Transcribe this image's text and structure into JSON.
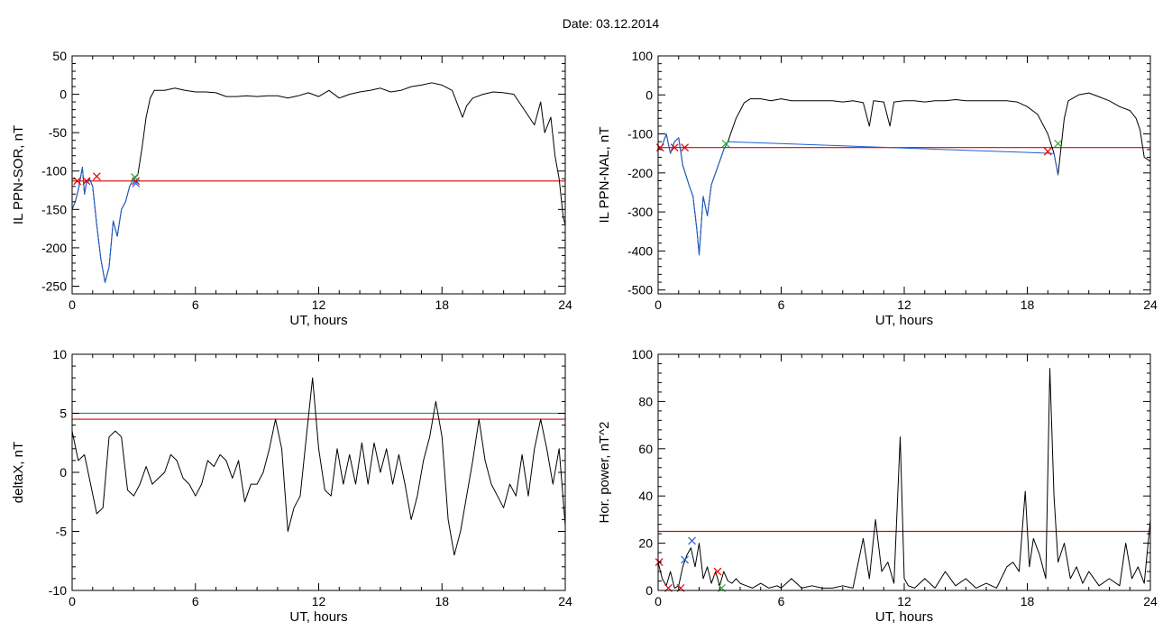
{
  "page": {
    "title": "Date:  03.12.2014"
  },
  "chart_data": [
    {
      "id": "p1",
      "type": "line",
      "ylabel": "IL PPN-SOR, nT",
      "xlabel": "UT, hours",
      "xlim": [
        0,
        24
      ],
      "ylim": [
        -260,
        50
      ],
      "xticks": [
        0,
        6,
        12,
        18,
        24
      ],
      "yticks": [
        50,
        0,
        -50,
        -100,
        -150,
        -200,
        -250
      ],
      "thresholds": [
        {
          "value": -113,
          "color": "#e00000"
        }
      ],
      "series": [
        {
          "color": "#000000",
          "x": [
            0,
            0.15,
            0.3,
            0.5,
            0.6,
            0.7,
            0.85,
            1.0,
            1.2,
            1.4,
            1.6,
            1.8,
            2.0,
            2.2,
            2.4,
            2.6,
            2.8,
            3.0,
            3.2,
            3.4,
            3.6,
            3.8,
            4.0,
            4.2,
            4.5,
            5,
            5.5,
            6,
            6.5,
            7,
            7.5,
            8,
            8.5,
            9,
            9.5,
            10,
            10.5,
            11,
            11.5,
            12,
            12.5,
            13,
            13.5,
            14,
            14.5,
            15,
            15.5,
            16,
            16.5,
            17,
            17.5,
            18,
            18.5,
            19,
            19.2,
            19.5,
            20,
            20.5,
            21,
            21.5,
            22,
            22.5,
            22.8,
            23,
            23.3,
            23.5,
            23.7,
            23.9,
            24
          ],
          "y": [
            -150,
            -140,
            -125,
            -95,
            -130,
            -115,
            -110,
            -120,
            -170,
            -215,
            -245,
            -225,
            -165,
            -185,
            -150,
            -140,
            -120,
            -110,
            -105,
            -70,
            -30,
            -5,
            5,
            5,
            5,
            8,
            5,
            3,
            3,
            2,
            -3,
            -3,
            -2,
            -3,
            -2,
            -2,
            -5,
            -2,
            2,
            -3,
            5,
            -5,
            0,
            3,
            5,
            8,
            3,
            5,
            10,
            12,
            15,
            12,
            5,
            -30,
            -15,
            -5,
            0,
            3,
            2,
            0,
            -20,
            -40,
            -10,
            -50,
            -30,
            -80,
            -110,
            -160,
            -170
          ]
        },
        {
          "color": "#1f5fd0",
          "x": [
            0,
            0.15,
            0.3,
            0.5,
            0.6,
            0.7,
            0.85,
            1.0,
            1.2,
            1.4,
            1.6,
            1.8,
            2.0,
            2.2,
            2.4,
            2.6,
            2.8,
            3.0,
            3.2
          ],
          "y": [
            -150,
            -140,
            -125,
            -95,
            -130,
            -115,
            -110,
            -120,
            -170,
            -215,
            -245,
            -225,
            -165,
            -185,
            -150,
            -140,
            -120,
            -110,
            -105
          ]
        }
      ],
      "markers": [
        {
          "x": 0.25,
          "y": -113,
          "color": "#e00000"
        },
        {
          "x": 0.7,
          "y": -113,
          "color": "#e00000"
        },
        {
          "x": 1.2,
          "y": -107,
          "color": "#e00000"
        },
        {
          "x": 3.1,
          "y": -113,
          "color": "#e00000"
        },
        {
          "x": 3.05,
          "y": -108,
          "color": "#22aa22"
        },
        {
          "x": 3.1,
          "y": -116,
          "color": "#1f5fd0"
        }
      ]
    },
    {
      "id": "p2",
      "type": "line",
      "ylabel": "IL PPN-NAL, nT",
      "xlabel": "UT, hours",
      "xlim": [
        0,
        24
      ],
      "ylim": [
        -510,
        100
      ],
      "xticks": [
        0,
        6,
        12,
        18,
        24
      ],
      "yticks": [
        100,
        0,
        -100,
        -200,
        -300,
        -400,
        -500
      ],
      "thresholds": [
        {
          "value": -135,
          "color": "#e00000"
        }
      ],
      "series": [
        {
          "color": "#000000",
          "x": [
            0,
            0.2,
            0.4,
            0.6,
            0.8,
            1.0,
            1.2,
            1.5,
            1.7,
            1.9,
            2.0,
            2.2,
            2.4,
            2.6,
            2.8,
            3.0,
            3.2,
            3.4,
            3.6,
            3.8,
            4.0,
            4.2,
            4.5,
            5,
            5.5,
            6,
            6.5,
            7,
            7.5,
            8,
            8.5,
            9,
            9.5,
            10,
            10.3,
            10.5,
            11,
            11.3,
            11.5,
            12,
            12.5,
            13,
            13.5,
            14,
            14.5,
            15,
            15.5,
            16,
            16.5,
            17,
            17.5,
            18,
            18.5,
            19,
            19.3,
            19.5,
            19.8,
            20,
            20.5,
            21,
            21.5,
            22,
            22.5,
            23,
            23.3,
            23.5,
            23.7,
            24
          ],
          "y": [
            -140,
            -130,
            -100,
            -150,
            -120,
            -110,
            -180,
            -230,
            -260,
            -350,
            -410,
            -260,
            -310,
            -230,
            -200,
            -170,
            -140,
            -120,
            -90,
            -60,
            -40,
            -20,
            -10,
            -10,
            -15,
            -10,
            -15,
            -15,
            -15,
            -15,
            -15,
            -18,
            -15,
            -20,
            -80,
            -15,
            -18,
            -80,
            -18,
            -15,
            -15,
            -18,
            -15,
            -15,
            -12,
            -15,
            -15,
            -15,
            -15,
            -15,
            -18,
            -30,
            -50,
            -100,
            -150,
            -205,
            -60,
            -15,
            0,
            5,
            -5,
            -15,
            -30,
            -40,
            -60,
            -90,
            -160,
            -170
          ]
        },
        {
          "color": "#1f5fd0",
          "x": [
            0,
            0.2,
            0.4,
            0.6,
            0.8,
            1.0,
            1.2,
            1.5,
            1.7,
            1.9,
            2.0,
            2.2,
            2.4,
            2.6,
            2.8,
            3.0,
            3.2,
            3.4,
            19.3,
            19.5
          ],
          "y": [
            -140,
            -130,
            -100,
            -150,
            -120,
            -110,
            -180,
            -230,
            -260,
            -350,
            -410,
            -260,
            -310,
            -230,
            -200,
            -170,
            -140,
            -120,
            -150,
            -205
          ]
        }
      ],
      "markers": [
        {
          "x": 0.1,
          "y": -135,
          "color": "#e00000"
        },
        {
          "x": 0.8,
          "y": -135,
          "color": "#e00000"
        },
        {
          "x": 1.3,
          "y": -135,
          "color": "#e00000"
        },
        {
          "x": 3.3,
          "y": -125,
          "color": "#22aa22"
        },
        {
          "x": 19.0,
          "y": -145,
          "color": "#e00000"
        },
        {
          "x": 19.5,
          "y": -125,
          "color": "#22aa22"
        }
      ]
    },
    {
      "id": "p3",
      "type": "line",
      "ylabel": "deltaX, nT",
      "xlabel": "UT, hours",
      "xlim": [
        0,
        24
      ],
      "ylim": [
        -10,
        10
      ],
      "xticks": [
        0,
        6,
        12,
        18,
        24
      ],
      "yticks": [
        10,
        5,
        0,
        -5,
        -10
      ],
      "thresholds": [
        {
          "value": 5.0,
          "color": "#2c8c8c"
        },
        {
          "value": 4.5,
          "color": "#e00000"
        }
      ],
      "series": [
        {
          "color": "#000000",
          "x": [
            0,
            0.3,
            0.6,
            0.9,
            1.2,
            1.5,
            1.8,
            2.1,
            2.4,
            2.7,
            3.0,
            3.3,
            3.6,
            3.9,
            4.2,
            4.5,
            4.8,
            5.1,
            5.4,
            5.7,
            6.0,
            6.3,
            6.6,
            6.9,
            7.2,
            7.5,
            7.8,
            8.1,
            8.4,
            8.7,
            9.0,
            9.3,
            9.6,
            9.9,
            10.2,
            10.5,
            10.8,
            11.1,
            11.4,
            11.7,
            12.0,
            12.3,
            12.6,
            12.9,
            13.2,
            13.5,
            13.8,
            14.1,
            14.4,
            14.7,
            15.0,
            15.3,
            15.6,
            15.9,
            16.2,
            16.5,
            16.8,
            17.1,
            17.4,
            17.7,
            18.0,
            18.3,
            18.6,
            18.9,
            19.2,
            19.5,
            19.8,
            20.1,
            20.4,
            20.7,
            21.0,
            21.3,
            21.6,
            21.9,
            22.2,
            22.5,
            22.8,
            23.1,
            23.4,
            23.7,
            24.0
          ],
          "y": [
            3.5,
            1,
            1.5,
            -1,
            -3.5,
            -3,
            3,
            3.5,
            3,
            -1.5,
            -2,
            -1,
            0.5,
            -1,
            -0.5,
            0,
            1.5,
            1,
            -0.5,
            -1,
            -2,
            -1,
            1,
            0.5,
            1.5,
            1,
            -0.5,
            1,
            -2.5,
            -1,
            -1,
            0,
            2,
            4.5,
            2,
            -5,
            -3,
            -2,
            3,
            8,
            2,
            -1.5,
            -2,
            2,
            -1,
            1.5,
            -1,
            2.5,
            -1,
            2.5,
            0,
            2,
            -1,
            1.5,
            -1,
            -4,
            -2,
            1,
            3,
            6,
            3,
            -4,
            -7,
            -5,
            -2,
            1,
            4.5,
            1,
            -1,
            -2,
            -3,
            -1,
            -2,
            1.5,
            -2,
            2,
            4.5,
            2,
            -1,
            2,
            -4.5
          ]
        }
      ],
      "markers": []
    },
    {
      "id": "p4",
      "type": "line",
      "ylabel": "Hor. power, nT^2",
      "xlabel": "UT, hours",
      "xlim": [
        0,
        24
      ],
      "ylim": [
        0,
        100
      ],
      "xticks": [
        0,
        6,
        12,
        18,
        24
      ],
      "yticks": [
        100,
        80,
        60,
        40,
        20,
        0
      ],
      "thresholds": [
        {
          "value": 25,
          "color": "#e00000"
        }
      ],
      "series": [
        {
          "color": "#000000",
          "x": [
            0,
            0.2,
            0.4,
            0.6,
            0.8,
            1.0,
            1.2,
            1.4,
            1.6,
            1.8,
            2.0,
            2.2,
            2.4,
            2.6,
            2.8,
            3.0,
            3.2,
            3.4,
            3.6,
            3.8,
            4.0,
            4.3,
            4.6,
            5.0,
            5.4,
            5.8,
            6.0,
            6.5,
            7,
            7.5,
            8,
            8.5,
            9,
            9.5,
            10,
            10.3,
            10.6,
            10.9,
            11.2,
            11.5,
            11.8,
            12.0,
            12.2,
            12.5,
            13,
            13.5,
            14,
            14.5,
            15,
            15.5,
            16,
            16.5,
            17,
            17.3,
            17.6,
            17.9,
            18.1,
            18.3,
            18.6,
            18.9,
            19.1,
            19.3,
            19.5,
            19.8,
            20.1,
            20.4,
            20.7,
            21,
            21.5,
            22,
            22.5,
            22.8,
            23.1,
            23.4,
            23.7,
            24
          ],
          "y": [
            12,
            5,
            2,
            8,
            1,
            2,
            10,
            15,
            18,
            10,
            20,
            5,
            10,
            3,
            8,
            2,
            8,
            4,
            3,
            5,
            3,
            2,
            1,
            3,
            1,
            2,
            1,
            5,
            1,
            2,
            1,
            1,
            2,
            1,
            22,
            5,
            30,
            8,
            12,
            3,
            65,
            5,
            2,
            1,
            5,
            1,
            8,
            2,
            5,
            1,
            3,
            1,
            10,
            12,
            8,
            42,
            10,
            22,
            15,
            5,
            94,
            40,
            12,
            20,
            5,
            10,
            3,
            8,
            2,
            5,
            2,
            20,
            5,
            10,
            3,
            30
          ]
        }
      ],
      "markers": [
        {
          "x": 0.05,
          "y": 12,
          "color": "#e00000"
        },
        {
          "x": 0.5,
          "y": 1,
          "color": "#e00000"
        },
        {
          "x": 1.1,
          "y": 1,
          "color": "#e00000"
        },
        {
          "x": 1.3,
          "y": 13,
          "color": "#1f5fd0"
        },
        {
          "x": 1.65,
          "y": 21,
          "color": "#1f5fd0"
        },
        {
          "x": 2.9,
          "y": 8,
          "color": "#e00000"
        },
        {
          "x": 3.1,
          "y": 1,
          "color": "#22aa22"
        }
      ]
    }
  ]
}
